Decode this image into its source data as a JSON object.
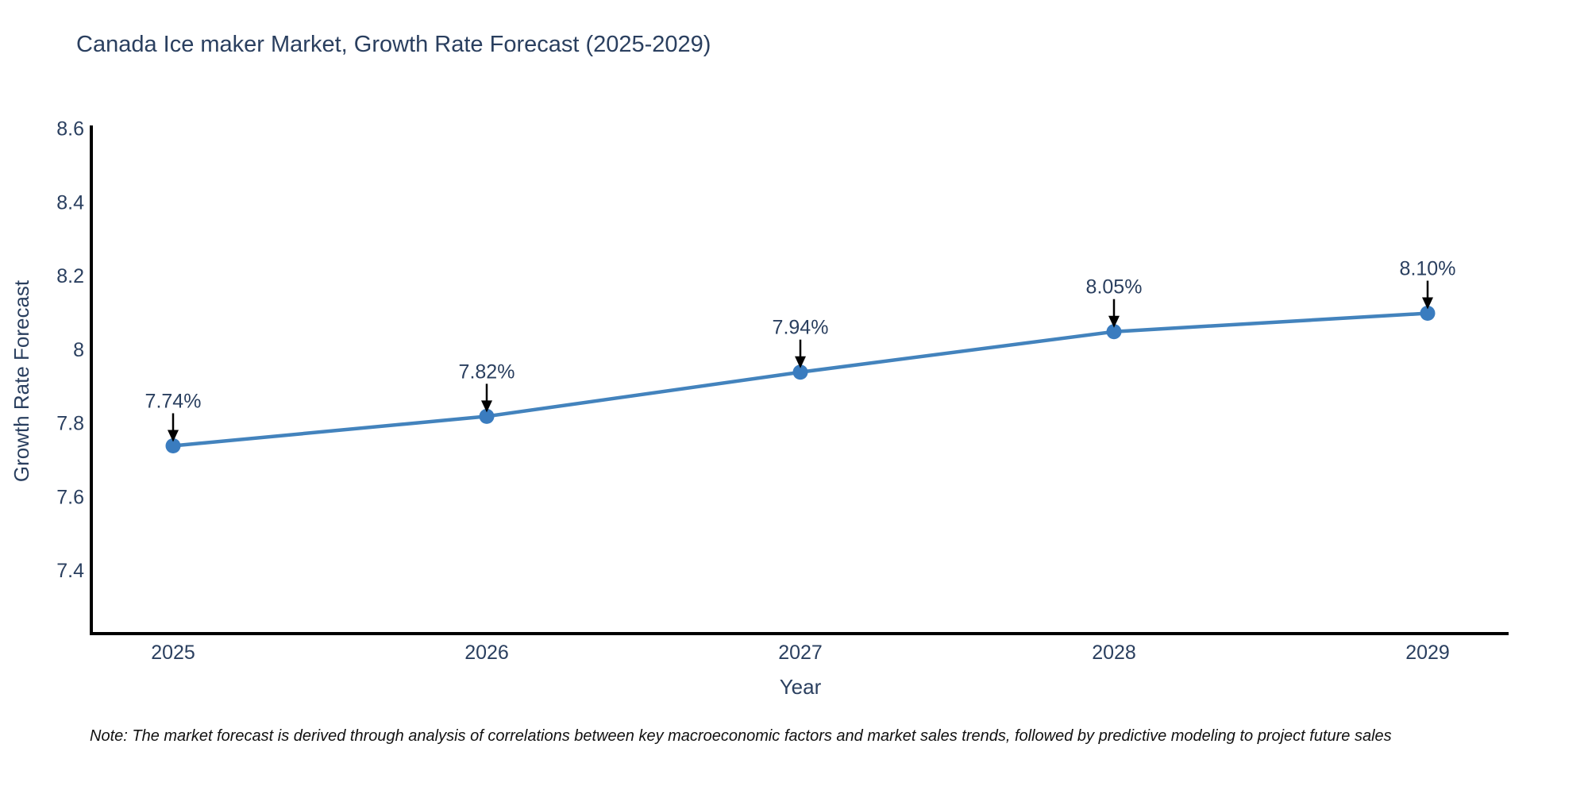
{
  "chart_data": {
    "type": "line",
    "title": "Canada Ice maker Market, Growth Rate Forecast (2025-2029)",
    "xlabel": "Year",
    "ylabel": "Growth Rate Forecast",
    "categories": [
      "2025",
      "2026",
      "2027",
      "2028",
      "2029"
    ],
    "values": [
      7.74,
      7.82,
      7.94,
      8.05,
      8.1
    ],
    "point_labels": [
      "7.74%",
      "7.82%",
      "7.94%",
      "8.05%",
      "8.10%"
    ],
    "yticks": [
      8.6,
      8.4,
      8.2,
      8,
      7.8,
      7.6,
      7.4
    ],
    "ytick_labels": [
      "8.6",
      "8.4",
      "8.2",
      "8",
      "7.8",
      "7.6",
      "7.4"
    ],
    "ylim": [
      7.23,
      8.61
    ],
    "grid": false,
    "legend": "none",
    "annotation_style": "down-arrow",
    "colors": {
      "line": "#4383bd",
      "marker": "#3a7cbf",
      "text": "#2a3f5f",
      "axis": "#000000",
      "arrow": "#000000",
      "background": "#ffffff"
    }
  },
  "note": "Note: The market forecast is derived through analysis of correlations between key macroeconomic factors and market sales trends, followed by predictive modeling to project future sales"
}
